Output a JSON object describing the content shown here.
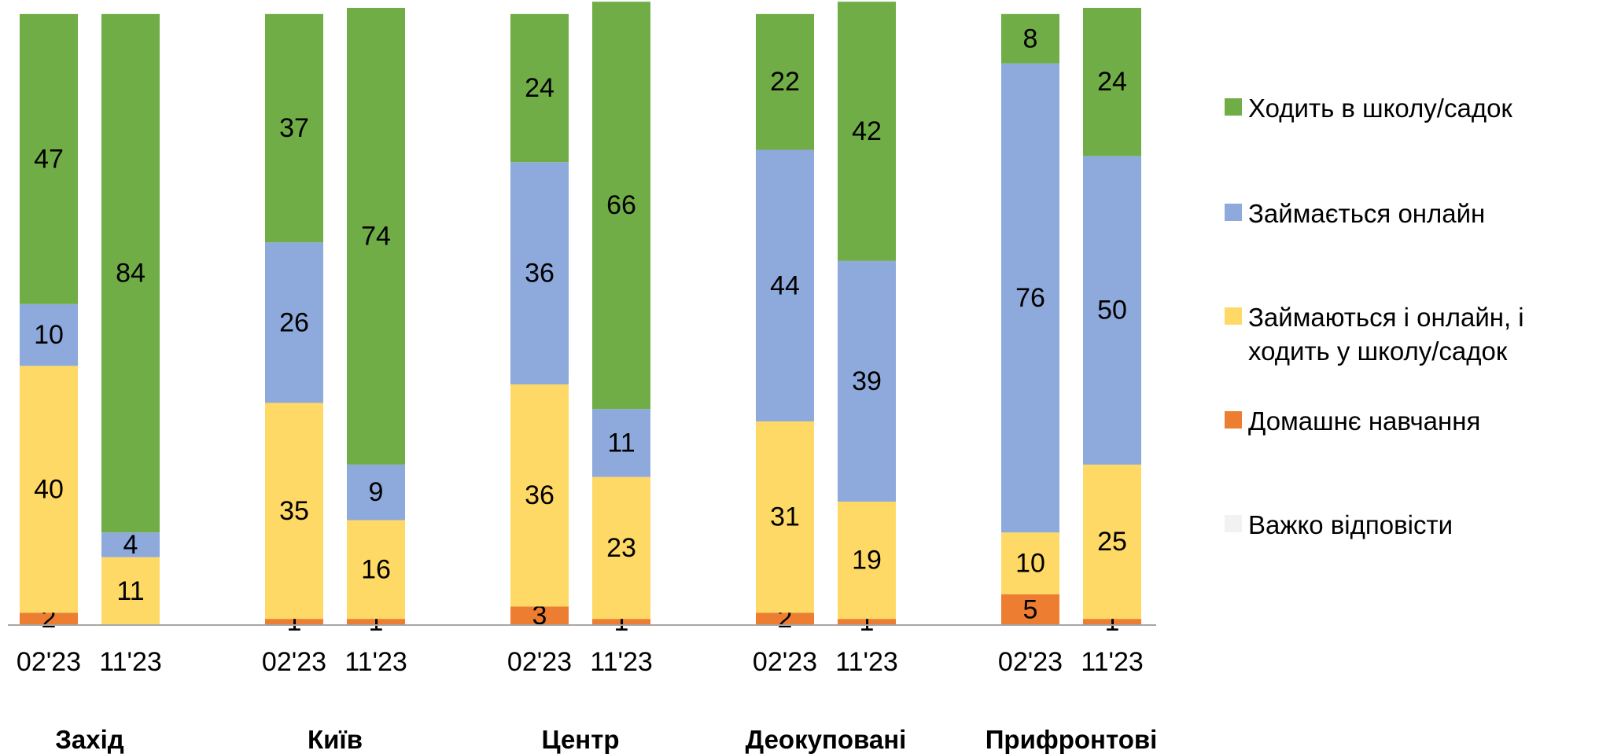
{
  "chart_data": {
    "type": "bar",
    "stacked": true,
    "groups": [
      "Захід",
      "Київ",
      "Центр",
      "Деокуповані",
      "Прифронтові"
    ],
    "periods": [
      "02'23",
      "11'23"
    ],
    "ylim": [
      0,
      100
    ],
    "grid": false,
    "legend_position": "right",
    "series": [
      {
        "name": "Домашнє навчання",
        "color": "#ED7D31",
        "values": [
          [
            2,
            0
          ],
          [
            1,
            1
          ],
          [
            3,
            1
          ],
          [
            2,
            1
          ],
          [
            5,
            1
          ]
        ],
        "labels": [
          [
            "2",
            ""
          ],
          [
            "1",
            "1"
          ],
          [
            "3",
            "1"
          ],
          [
            "2",
            "1"
          ],
          [
            "5",
            "1"
          ]
        ]
      },
      {
        "name": "Займаються і онлайн, і ходить у школу/садок",
        "color": "#FFD966",
        "values": [
          [
            40,
            11
          ],
          [
            35,
            16
          ],
          [
            36,
            23
          ],
          [
            31,
            19
          ],
          [
            10,
            25
          ]
        ],
        "labels": [
          [
            "40",
            "11"
          ],
          [
            "35",
            "16"
          ],
          [
            "36",
            "23"
          ],
          [
            "31",
            "19"
          ],
          [
            "10",
            "25"
          ]
        ]
      },
      {
        "name": "Займається онлайн",
        "color": "#8EA9DB",
        "values": [
          [
            10,
            4
          ],
          [
            26,
            9
          ],
          [
            36,
            11
          ],
          [
            44,
            39
          ],
          [
            76,
            50
          ]
        ],
        "labels": [
          [
            "10",
            "4"
          ],
          [
            "26",
            "9"
          ],
          [
            "36",
            "11"
          ],
          [
            "44",
            "39"
          ],
          [
            "76",
            "50"
          ]
        ]
      },
      {
        "name": "Ходить в школу/садок",
        "color": "#70AD47",
        "values": [
          [
            47,
            84
          ],
          [
            37,
            74
          ],
          [
            24,
            66
          ],
          [
            22,
            42
          ],
          [
            8,
            24
          ]
        ],
        "labels": [
          [
            "47",
            "84"
          ],
          [
            "37",
            "74"
          ],
          [
            "24",
            "66"
          ],
          [
            "22",
            "42"
          ],
          [
            "8",
            "24"
          ]
        ]
      },
      {
        "name": "Важко відповісти",
        "color": "#F2F2F2",
        "values": [
          [
            0,
            0
          ],
          [
            0,
            0
          ],
          [
            0,
            0
          ],
          [
            0,
            0
          ],
          [
            0,
            0
          ]
        ],
        "labels": [
          [
            "",
            ""
          ],
          [
            "",
            ""
          ],
          [
            "",
            ""
          ],
          [
            "",
            ""
          ],
          [
            "",
            ""
          ]
        ]
      }
    ],
    "legend_order": [
      "Ходить в школу/садок",
      "Займається онлайн",
      "Займаються і онлайн, і ходить у школу/садок",
      "Домашнє навчання",
      "Важко відповісти"
    ]
  }
}
